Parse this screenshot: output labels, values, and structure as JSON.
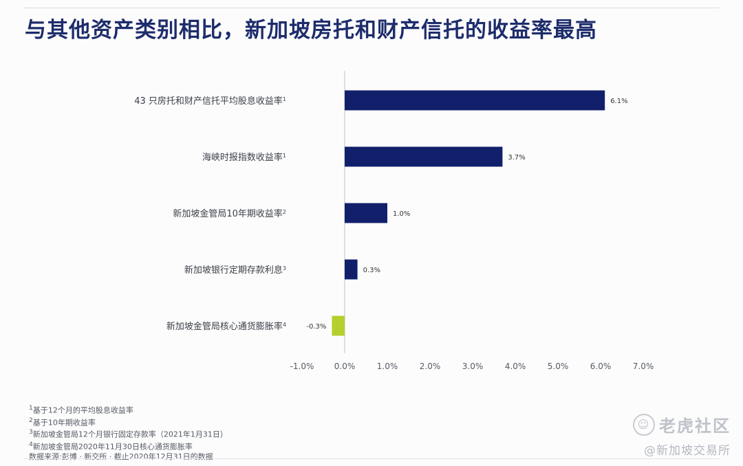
{
  "title": "与其他资产类别相比，新加坡房托和财产信托的收益率最高",
  "chart_data": {
    "type": "bar",
    "orientation": "horizontal",
    "categories": [
      {
        "text": "43 只房托和财产信托平均股息收益率",
        "note": "1"
      },
      {
        "text": "海峡时报指数收益率",
        "note": "1"
      },
      {
        "text": "新加坡金管局10年期收益率",
        "note": "2"
      },
      {
        "text": "新加坡银行定期存款利息",
        "note": "3"
      },
      {
        "text": "新加坡金管局核心通货膨胀率",
        "note": "4"
      }
    ],
    "values": [
      6.1,
      3.7,
      1.0,
      0.3,
      -0.3
    ],
    "value_labels": [
      "6.1%",
      "3.7%",
      "1.0%",
      "0.3%",
      "-0.3%"
    ],
    "xlim": [
      -1.0,
      7.0
    ],
    "xticks": [
      "-1.0%",
      "0.0%",
      "1.0%",
      "2.0%",
      "3.0%",
      "4.0%",
      "5.0%",
      "6.0%",
      "7.0%"
    ],
    "colors": {
      "positive": "#12206b",
      "negative": "#b7cf2c",
      "zero_line": "#c8ccd2"
    }
  },
  "footnotes": {
    "n1": {
      "mark": "1",
      "text": "基于12个月的平均股息收益率"
    },
    "n2": {
      "mark": "2",
      "text": "基于10年期收益率"
    },
    "n3": {
      "mark": "3",
      "text": "新加坡金管局12个月银行固定存款率（2021年1月31日）"
    },
    "n4": {
      "mark": "4",
      "text": "新加坡金管局2020年11月30日核心通货膨胀率"
    },
    "source": "数据来源:彭博 · 新交所 · 截止2020年12月31日的数据"
  },
  "watermark": {
    "main": "老虎社区",
    "sub": "@新加坡交易所",
    "logo_icon": "tiger-logo-icon"
  }
}
